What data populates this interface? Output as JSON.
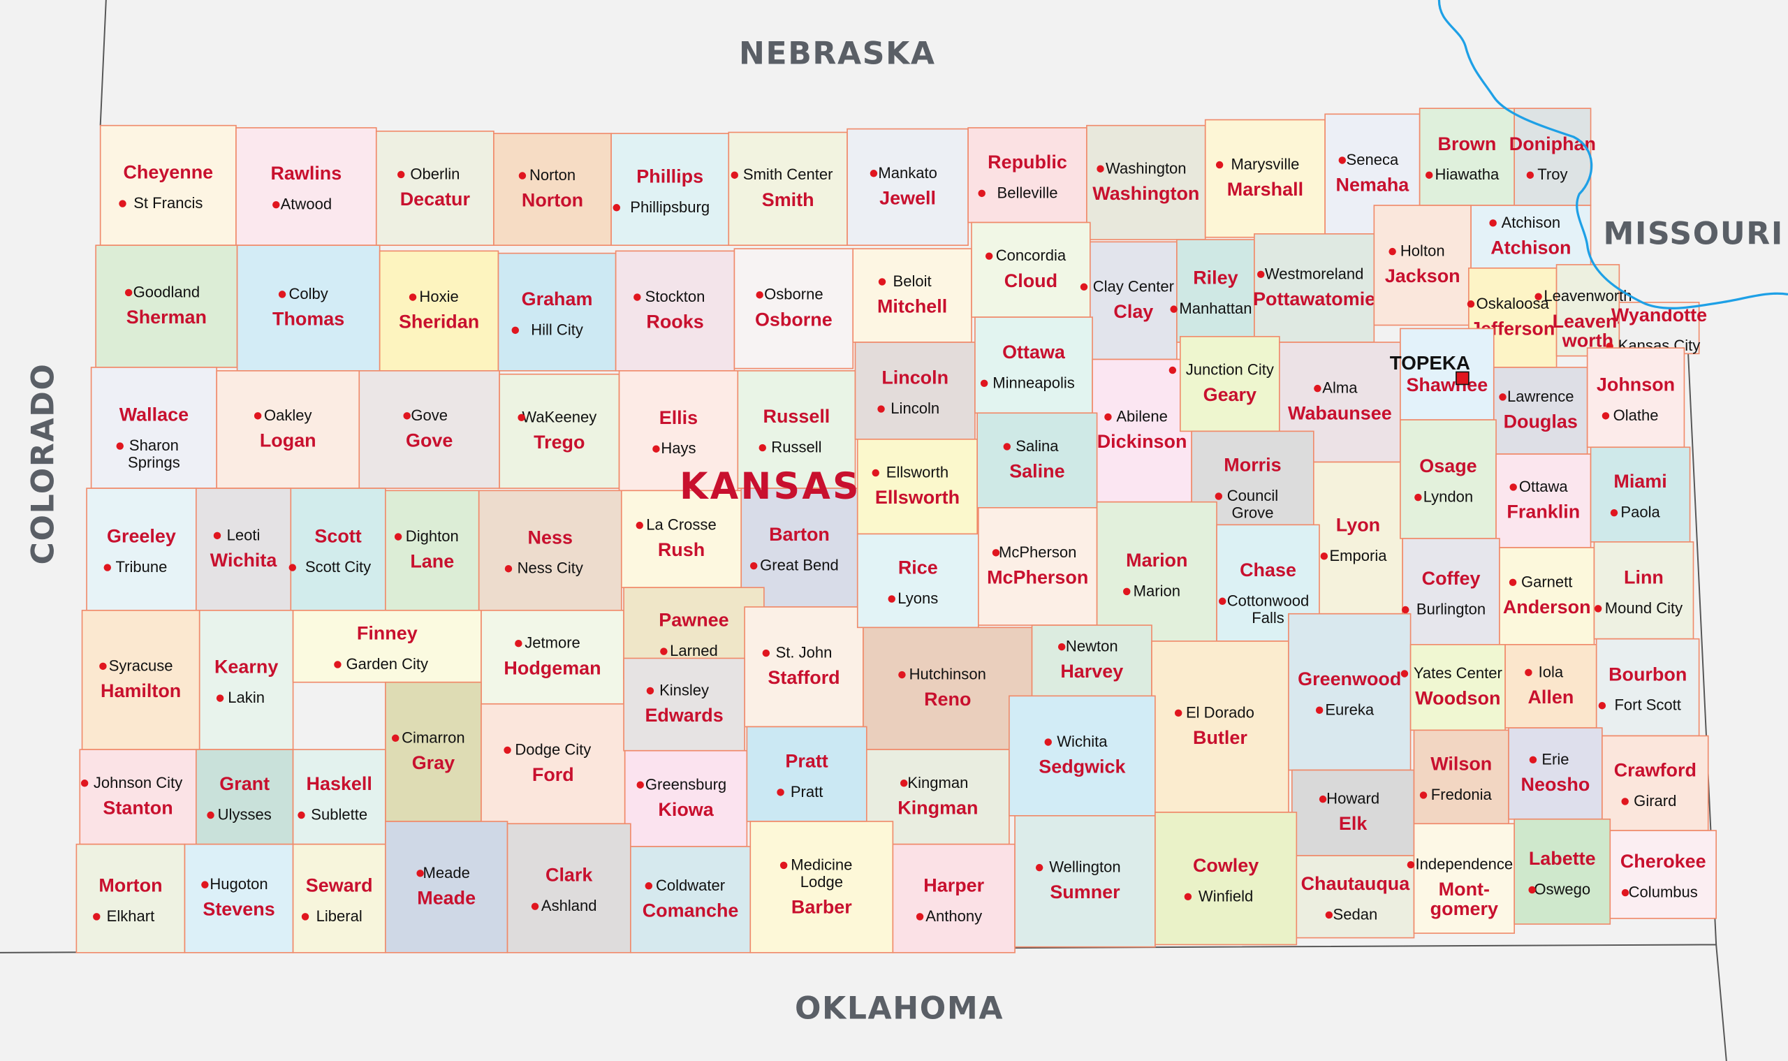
{
  "neighbors": {
    "north": "NEBRASKA",
    "east": "MISSOURI",
    "west": "COLORADO",
    "south": "OKLAHOMA"
  },
  "state_name": "KANSAS",
  "colors": {
    "county_name": "#c8102e",
    "seat_dot": "#e0161f",
    "border": "#f08a6a",
    "river": "#1ea0e6",
    "background": "#f2f2f2"
  },
  "counties": [
    {
      "name": "Cheyenne",
      "seat": "St Francis",
      "color": "#fdf5e3"
    },
    {
      "name": "Rawlins",
      "seat": "Atwood",
      "color": "#fbe8ee"
    },
    {
      "name": "Decatur",
      "seat": "Oberlin",
      "color": "#eef0e2"
    },
    {
      "name": "Norton",
      "seat": "Norton",
      "color": "#f6dcc4"
    },
    {
      "name": "Phillips",
      "seat": "Phillipsburg",
      "color": "#e0f2f4"
    },
    {
      "name": "Smith",
      "seat": "Smith Center",
      "color": "#f2f3e0"
    },
    {
      "name": "Jewell",
      "seat": "Mankato",
      "color": "#eceff4"
    },
    {
      "name": "Republic",
      "seat": "Belleville",
      "color": "#fbe1e3"
    },
    {
      "name": "Washington",
      "seat": "Washington",
      "color": "#e8e8dc"
    },
    {
      "name": "Marshall",
      "seat": "Marysville",
      "color": "#fdf6d6"
    },
    {
      "name": "Nemaha",
      "seat": "Seneca",
      "color": "#eceff6"
    },
    {
      "name": "Brown",
      "seat": "Hiawatha",
      "color": "#dff0dc"
    },
    {
      "name": "Doniphan",
      "seat": "Troy",
      "color": "#dde3e4"
    },
    {
      "name": "Sherman",
      "seat": "Goodland",
      "color": "#dcedd6"
    },
    {
      "name": "Thomas",
      "seat": "Colby",
      "color": "#d3ecf6"
    },
    {
      "name": "Sheridan",
      "seat": "Hoxie",
      "color": "#fdf4bf"
    },
    {
      "name": "Graham",
      "seat": "Hill City",
      "color": "#cde9f3"
    },
    {
      "name": "Rooks",
      "seat": "Stockton",
      "color": "#f3e4ea"
    },
    {
      "name": "Osborne",
      "seat": "Osborne",
      "color": "#f7f3f3"
    },
    {
      "name": "Mitchell",
      "seat": "Beloit",
      "color": "#fdf6e3"
    },
    {
      "name": "Cloud",
      "seat": "Concordia",
      "color": "#f1f7e6"
    },
    {
      "name": "Clay",
      "seat": "Clay Center",
      "color": "#e2e4ec"
    },
    {
      "name": "Riley",
      "seat": "Manhattan",
      "color": "#cfe8e4"
    },
    {
      "name": "Pottawatomie",
      "seat": "Westmoreland",
      "color": "#dfe9e2"
    },
    {
      "name": "Jackson",
      "seat": "Holton",
      "color": "#fae7dc"
    },
    {
      "name": "Atchison",
      "seat": "Atchison",
      "color": "#e4f2f8"
    },
    {
      "name": "Jefferson",
      "seat": "Oskaloosa",
      "color": "#fdf4c6"
    },
    {
      "name": "Leavenworth",
      "seat": "Leavenworth",
      "color": "#edf0e0",
      "name_lines": [
        "Leaven-",
        "worth"
      ]
    },
    {
      "name": "Wyandotte",
      "seat": "Kansas City",
      "color": "#f0f0f0"
    },
    {
      "name": "Wallace",
      "seat": "Sharon Springs",
      "color": "#eef0f6",
      "seat_lines": [
        "Sharon",
        "Springs"
      ]
    },
    {
      "name": "Logan",
      "seat": "Oakley",
      "color": "#fbece3"
    },
    {
      "name": "Gove",
      "seat": "Gove",
      "color": "#ebe6e6"
    },
    {
      "name": "Trego",
      "seat": "WaKeeney",
      "color": "#edf3e2"
    },
    {
      "name": "Ellis",
      "seat": "Hays",
      "color": "#fdebe6"
    },
    {
      "name": "Russell",
      "seat": "Russell",
      "color": "#e9f4e6"
    },
    {
      "name": "Lincoln",
      "seat": "Lincoln",
      "color": "#e3dcda"
    },
    {
      "name": "Ottawa",
      "seat": "Minneapolis",
      "color": "#e2f4f0"
    },
    {
      "name": "Dickinson",
      "seat": "Abilene",
      "color": "#fbe6f2"
    },
    {
      "name": "Geary",
      "seat": "Junction City",
      "color": "#eef6cf"
    },
    {
      "name": "Wabaunsee",
      "seat": "Alma",
      "color": "#ece2e6"
    },
    {
      "name": "Shawnee",
      "seat": "TOPEKA",
      "capital": true,
      "color": "#e3f2fa"
    },
    {
      "name": "Douglas",
      "seat": "Lawrence",
      "color": "#dedfe6"
    },
    {
      "name": "Johnson",
      "seat": "Olathe",
      "color": "#fcebea"
    },
    {
      "name": "Greeley",
      "seat": "Tribune",
      "color": "#e7f3f7"
    },
    {
      "name": "Wichita",
      "seat": "Leoti",
      "color": "#e4e2e4"
    },
    {
      "name": "Scott",
      "seat": "Scott City",
      "color": "#d2ecec"
    },
    {
      "name": "Lane",
      "seat": "Dighton",
      "color": "#dcedd6"
    },
    {
      "name": "Ness",
      "seat": "Ness City",
      "color": "#eddccd"
    },
    {
      "name": "Rush",
      "seat": "La Crosse",
      "color": "#fdf8e0"
    },
    {
      "name": "Barton",
      "seat": "Great Bend",
      "color": "#d8dce8"
    },
    {
      "name": "Ellsworth",
      "seat": "Ellsworth",
      "color": "#fbf8cc"
    },
    {
      "name": "Saline",
      "seat": "Salina",
      "color": "#cfe9e6"
    },
    {
      "name": "Morris",
      "seat": "Council Grove",
      "color": "#dcdcdc",
      "seat_lines": [
        "Council",
        "Grove"
      ]
    },
    {
      "name": "Lyon",
      "seat": "Emporia",
      "color": "#f5f2dc"
    },
    {
      "name": "Osage",
      "seat": "Lyndon",
      "color": "#e3f1dc"
    },
    {
      "name": "Franklin",
      "seat": "Ottawa",
      "color": "#fbe6ee"
    },
    {
      "name": "Miami",
      "seat": "Paola",
      "color": "#cfe9ea"
    },
    {
      "name": "Hamilton",
      "seat": "Syracuse",
      "color": "#fbe8d0"
    },
    {
      "name": "Kearny",
      "seat": "Lakin",
      "color": "#e8f3ec"
    },
    {
      "name": "Finney",
      "seat": "Garden City",
      "color": "#fbfae0"
    },
    {
      "name": "Hodgeman",
      "seat": "Jetmore",
      "color": "#f2f7e8"
    },
    {
      "name": "Pawnee",
      "seat": "Larned",
      "color": "#efe6c8"
    },
    {
      "name": "Stafford",
      "seat": "St. John",
      "color": "#fbf0e6"
    },
    {
      "name": "Rice",
      "seat": "Lyons",
      "color": "#e2f3f6"
    },
    {
      "name": "McPherson",
      "seat": "McPherson",
      "color": "#fcefe6"
    },
    {
      "name": "Marion",
      "seat": "Marion",
      "color": "#e2f0dc"
    },
    {
      "name": "Chase",
      "seat": "Cottonwood Falls",
      "color": "#dcf1f4",
      "seat_lines": [
        "Cottonwood",
        "Falls"
      ]
    },
    {
      "name": "Coffey",
      "seat": "Burlington",
      "color": "#e6e6ec"
    },
    {
      "name": "Anderson",
      "seat": "Garnett",
      "color": "#fcf8dc"
    },
    {
      "name": "Linn",
      "seat": "Mound City",
      "color": "#eef1e2"
    },
    {
      "name": "Gray",
      "seat": "Cimarron",
      "color": "#dedcb4"
    },
    {
      "name": "Ford",
      "seat": "Dodge City",
      "color": "#fbe6dc"
    },
    {
      "name": "Edwards",
      "seat": "Kinsley",
      "color": "#e6e3e3"
    },
    {
      "name": "Reno",
      "seat": "Hutchinson",
      "color": "#eacfbd"
    },
    {
      "name": "Harvey",
      "seat": "Newton",
      "color": "#dcece0"
    },
    {
      "name": "Butler",
      "seat": "El Dorado",
      "color": "#fbeccf"
    },
    {
      "name": "Greenwood",
      "seat": "Eureka",
      "color": "#d9e8ee"
    },
    {
      "name": "Woodson",
      "seat": "Yates Center",
      "color": "#f0f7d2"
    },
    {
      "name": "Allen",
      "seat": "Iola",
      "color": "#fbe6cc"
    },
    {
      "name": "Bourbon",
      "seat": "Fort Scott",
      "color": "#e9eff0"
    },
    {
      "name": "Stanton",
      "seat": "Johnson City",
      "color": "#fbe3e6"
    },
    {
      "name": "Grant",
      "seat": "Ulysses",
      "color": "#c9e1da"
    },
    {
      "name": "Haskell",
      "seat": "Sublette",
      "color": "#e3f2ee"
    },
    {
      "name": "Kiowa",
      "seat": "Greensburg",
      "color": "#fbe3ef"
    },
    {
      "name": "Pratt",
      "seat": "Pratt",
      "color": "#cbe8f3"
    },
    {
      "name": "Kingman",
      "seat": "Kingman",
      "color": "#e9ede0"
    },
    {
      "name": "Sedgwick",
      "seat": "Wichita",
      "color": "#d2ecf6"
    },
    {
      "name": "Elk",
      "seat": "Howard",
      "color": "#d9d9d9"
    },
    {
      "name": "Wilson",
      "seat": "Fredonia",
      "color": "#f2d6c2"
    },
    {
      "name": "Neosho",
      "seat": "Erie",
      "color": "#dedfec"
    },
    {
      "name": "Crawford",
      "seat": "Girard",
      "color": "#fbe6dc"
    },
    {
      "name": "Morton",
      "seat": "Elkhart",
      "color": "#eef2e2"
    },
    {
      "name": "Stevens",
      "seat": "Hugoton",
      "color": "#dcf0f8"
    },
    {
      "name": "Seward",
      "seat": "Liberal",
      "color": "#f7f5dc"
    },
    {
      "name": "Meade",
      "seat": "Meade",
      "color": "#cfd8e6"
    },
    {
      "name": "Clark",
      "seat": "Ashland",
      "color": "#dedcdc"
    },
    {
      "name": "Comanche",
      "seat": "Coldwater",
      "color": "#d6e9ee"
    },
    {
      "name": "Barber",
      "seat": "Medicine Lodge",
      "color": "#fdf8d8",
      "seat_lines": [
        "Medicine",
        "Lodge"
      ]
    },
    {
      "name": "Harper",
      "seat": "Anthony",
      "color": "#fbe1e6"
    },
    {
      "name": "Sumner",
      "seat": "Wellington",
      "color": "#dcecea"
    },
    {
      "name": "Cowley",
      "seat": "Winfield",
      "color": "#eaf2c8"
    },
    {
      "name": "Chautauqua",
      "seat": "Sedan",
      "color": "#eceee0"
    },
    {
      "name": "Montgomery",
      "seat": "Independence",
      "color": "#fdf8e6",
      "name_lines": [
        "Mont-",
        "gomery"
      ]
    },
    {
      "name": "Labette",
      "seat": "Oswego",
      "color": "#cfe8cc"
    },
    {
      "name": "Cherokee",
      "seat": "Columbus",
      "color": "#fbeef2"
    }
  ]
}
